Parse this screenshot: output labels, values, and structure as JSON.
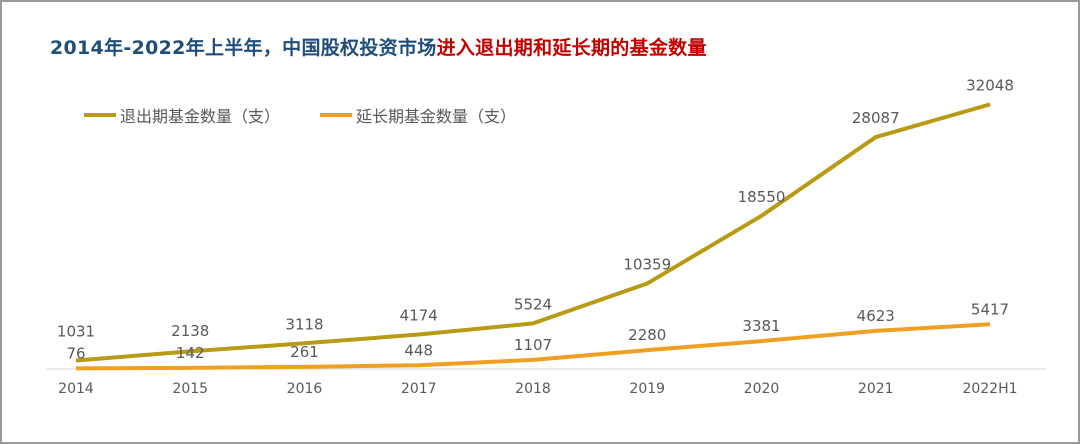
{
  "title_part1": "2014年-2022年上半年，中国股权投资市场",
  "title_part2": "进入退出期和延长期的基金数量",
  "colors": {
    "title_blue": "#1f4e79",
    "title_red": "#c00000",
    "exit": "#b89a14",
    "extension": "#f0a020"
  },
  "chart_data": {
    "type": "line",
    "categories": [
      "2014",
      "2015",
      "2016",
      "2017",
      "2018",
      "2019",
      "2020",
      "2021",
      "2022H1"
    ],
    "series": [
      {
        "name": "退出期基金数量（支）",
        "values": [
          1031,
          2138,
          3118,
          4174,
          5524,
          10359,
          18550,
          28087,
          32048
        ]
      },
      {
        "name": "延长期基金数量（支）",
        "values": [
          76,
          142,
          261,
          448,
          1107,
          2280,
          3381,
          4623,
          5417
        ]
      }
    ],
    "ylim": [
      0,
      35000
    ],
    "grid": false,
    "legend": "top-left"
  }
}
